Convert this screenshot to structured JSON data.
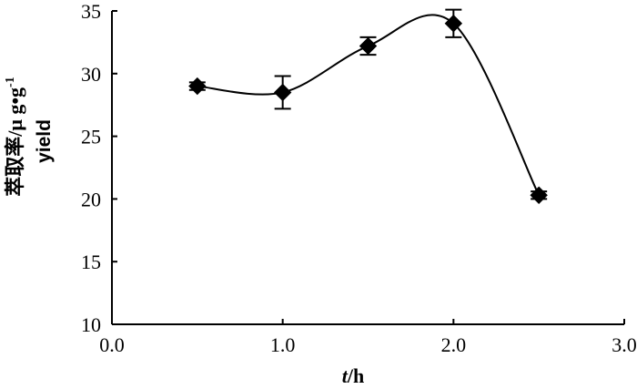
{
  "chart_data": {
    "type": "line",
    "x_axis": {
      "label_italic": "t",
      "label_rest": "/h",
      "range": [
        0,
        3
      ],
      "ticks": [
        0,
        1,
        2,
        3
      ],
      "tick_labels": [
        "0.0",
        "1.0",
        "2.0",
        "3.0"
      ]
    },
    "y_axis": {
      "label_cn": "萃取率/μ g•g",
      "label_sup": "-1",
      "label_en": "yield",
      "range": [
        10,
        35
      ],
      "ticks": [
        10,
        15,
        20,
        25,
        30,
        35
      ],
      "tick_labels": [
        "10",
        "15",
        "20",
        "25",
        "30",
        "35"
      ]
    },
    "grid": false,
    "series": [
      {
        "marker": "diamond",
        "color": "#000000",
        "smoothed": true,
        "x": [
          0.5,
          1.0,
          1.5,
          2.0,
          2.5
        ],
        "y": [
          29.0,
          28.5,
          32.2,
          34.0,
          20.3
        ],
        "err": [
          0.3,
          1.3,
          0.7,
          1.1,
          0.3
        ]
      }
    ]
  }
}
